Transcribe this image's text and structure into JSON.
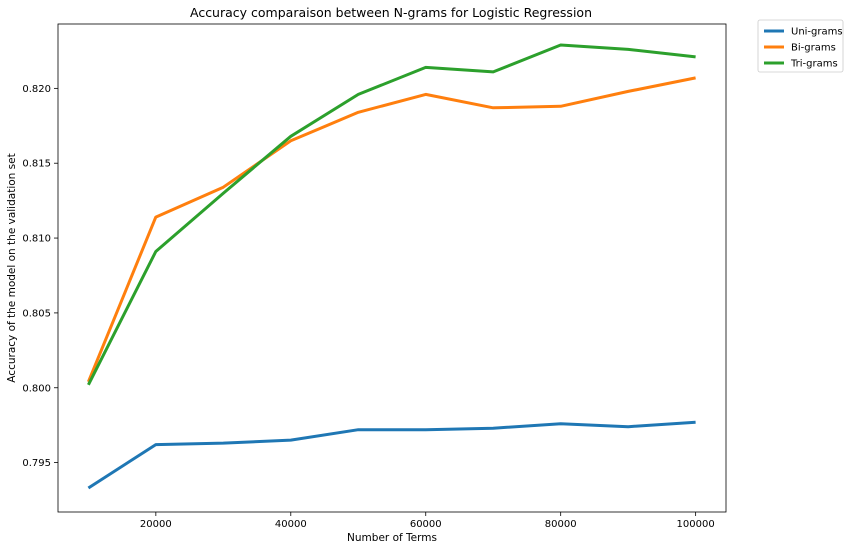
{
  "chart_data": {
    "type": "line",
    "title": "Accuracy comparaison between N-grams for Logistic Regression",
    "xlabel": "Number of Terms",
    "ylabel": "Accuracy of the model on the validation set",
    "xlim": [
      5500,
      104500
    ],
    "ylim": [
      0.7917,
      0.8243
    ],
    "xticks": [
      20000,
      40000,
      60000,
      80000,
      100000
    ],
    "xtick_labels": [
      "20000",
      "40000",
      "60000",
      "80000",
      "100000"
    ],
    "yticks": [
      0.795,
      0.8,
      0.805,
      0.81,
      0.815,
      0.82
    ],
    "ytick_labels": [
      "0.795",
      "0.800",
      "0.805",
      "0.810",
      "0.815",
      "0.820"
    ],
    "grid": false,
    "legend_position": "outside top-right",
    "x": [
      10000,
      20000,
      30000,
      40000,
      50000,
      60000,
      70000,
      80000,
      90000,
      100000
    ],
    "series": [
      {
        "name": "Uni-grams",
        "color": "#1f77b4",
        "values": [
          0.7933,
          0.7962,
          0.7963,
          0.7965,
          0.7972,
          0.7972,
          0.7973,
          0.7976,
          0.7974,
          0.7977
        ]
      },
      {
        "name": "Bi-grams",
        "color": "#ff7f0e",
        "values": [
          0.8004,
          0.8114,
          0.8134,
          0.8165,
          0.8184,
          0.8196,
          0.8187,
          0.8188,
          0.8198,
          0.8207
        ]
      },
      {
        "name": "Tri-grams",
        "color": "#2ca02c",
        "values": [
          0.8002,
          0.8091,
          0.813,
          0.8168,
          0.8196,
          0.8214,
          0.8211,
          0.8229,
          0.8226,
          0.8221
        ]
      }
    ]
  }
}
